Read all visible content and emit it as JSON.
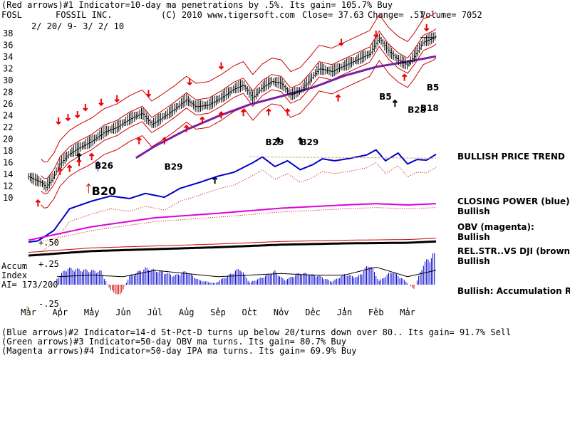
{
  "header": {
    "line1": "(Red arrows)#1 Indicator=10-day ma penetrations by .5%. Its gain= 105.7% Buy",
    "ticker": "FOSL",
    "company": "FOSSIL INC.",
    "copyright": "(C) 2010 www.tigersoft.com",
    "close": "Close=  37.63",
    "change": "Change= .57",
    "volume": "Volume= 7052",
    "date_range": "2/ 20/ 9- 3/ 2/ 10"
  },
  "footer": {
    "line1": "(Blue arrows)#2 Indicator=14-d St-Pct-D turns up below 20/turns down over 80.. Its gain= 91.7% Sell",
    "line2": "(Green arrows)#3 Indicator=50-day OBV ma turns. Its gain= 80.7% Buy",
    "line3": "(Magenta arrows)#4 Indicator=50-day IPA ma turns. Its gain= 69.9% Buy"
  },
  "side_labels": {
    "trend": "BULLISH PRICE TREND",
    "closing_power_title": "CLOSING POWER (blue):",
    "closing_power_state": "Bullish",
    "obv_title": "OBV (magenta):",
    "obv_state": "Bullish",
    "relstr_title": "REL.STR..VS DJI (brown):",
    "relstr_state": "Bullish",
    "accum_state": "Bullish: Accumulation Rising"
  },
  "accum_label": {
    "line1": "Accum",
    "line2": "Index",
    "line3": "AI= 173/200",
    "plus50": "+.50",
    "plus25": "+.25",
    "minus25": "-.25"
  },
  "colors": {
    "price_bars": "#000000",
    "bands": "#cc0000",
    "ma_purple": "#7a1fa2",
    "closing_power": "#0000cc",
    "obv": "#dd00dd",
    "rel_str": "#000000",
    "accum_pos": "#0000cc",
    "accum_neg": "#cc0000",
    "red_arrow": "#ee0000",
    "tan_dash": "#c8a060"
  },
  "chart_data": {
    "type": "bar",
    "ylim": [
      10,
      38
    ],
    "y_ticks": [
      "38",
      "36",
      "34",
      "32",
      "30",
      "28",
      "26",
      "24",
      "22",
      "20",
      "18",
      "16",
      "14",
      "12",
      "10"
    ],
    "months": [
      "Mar",
      "Apr",
      "May",
      "Jun",
      "Jul",
      "Aug",
      "Sep",
      "Oct",
      "Nov",
      "Dec",
      "Jan",
      "Feb",
      "Mar"
    ],
    "annotations": [
      {
        "text": "B26",
        "month": 2.1,
        "price": 15.0
      },
      {
        "text": "B20",
        "month": 2.0,
        "price": 10.5
      },
      {
        "text": "B29",
        "month": 4.3,
        "price": 14.8
      },
      {
        "text": "B29",
        "month": 7.5,
        "price": 19.0
      },
      {
        "text": "B29",
        "month": 8.6,
        "price": 19.0
      },
      {
        "text": "B5",
        "month": 11.1,
        "price": 26.7
      },
      {
        "text": "B5",
        "month": 12.6,
        "price": 28.3
      },
      {
        "text": "B28",
        "month": 12.0,
        "price": 24.5
      },
      {
        "text": "B18",
        "month": 12.4,
        "price": 24.8
      }
    ],
    "price_close_anchors": [
      [
        0.0,
        13.6
      ],
      [
        0.4,
        12.6
      ],
      [
        0.55,
        11.8
      ],
      [
        0.8,
        13.6
      ],
      [
        1.0,
        15.8
      ],
      [
        1.3,
        17.5
      ],
      [
        1.6,
        18.5
      ],
      [
        2.0,
        19.6
      ],
      [
        2.4,
        21.2
      ],
      [
        2.8,
        22.0
      ],
      [
        3.2,
        23.4
      ],
      [
        3.6,
        24.4
      ],
      [
        3.9,
        22.5
      ],
      [
        4.2,
        23.5
      ],
      [
        4.6,
        25.0
      ],
      [
        5.0,
        26.7
      ],
      [
        5.3,
        25.5
      ],
      [
        5.7,
        25.8
      ],
      [
        6.1,
        27.0
      ],
      [
        6.5,
        28.5
      ],
      [
        6.8,
        29.2
      ],
      [
        7.1,
        27.0
      ],
      [
        7.4,
        28.8
      ],
      [
        7.7,
        29.8
      ],
      [
        8.0,
        29.5
      ],
      [
        8.3,
        27.5
      ],
      [
        8.6,
        28.2
      ],
      [
        8.9,
        30.0
      ],
      [
        9.2,
        32.0
      ],
      [
        9.6,
        31.5
      ],
      [
        10.0,
        32.5
      ],
      [
        10.4,
        33.5
      ],
      [
        10.8,
        34.5
      ],
      [
        11.1,
        37.2
      ],
      [
        11.4,
        35.0
      ],
      [
        11.7,
        33.5
      ],
      [
        12.0,
        32.6
      ],
      [
        12.2,
        34.0
      ],
      [
        12.5,
        36.5
      ],
      [
        12.8,
        37.2
      ],
      [
        12.9,
        37.6
      ]
    ],
    "ma50_anchors": [
      [
        3.4,
        16.8
      ],
      [
        4.0,
        18.8
      ],
      [
        5.0,
        21.6
      ],
      [
        6.0,
        23.9
      ],
      [
        7.0,
        25.9
      ],
      [
        8.0,
        27.3
      ],
      [
        9.0,
        28.8
      ],
      [
        10.0,
        30.8
      ],
      [
        11.0,
        32.3
      ],
      [
        12.0,
        33.2
      ],
      [
        12.9,
        34.1
      ]
    ],
    "red_arrows_down": [
      {
        "month": 0.95,
        "price": 22.6
      },
      {
        "month": 1.25,
        "price": 23.2
      },
      {
        "month": 1.55,
        "price": 23.7
      },
      {
        "month": 1.8,
        "price": 24.9
      },
      {
        "month": 2.3,
        "price": 25.8
      },
      {
        "month": 2.8,
        "price": 26.4
      },
      {
        "month": 3.8,
        "price": 27.3
      },
      {
        "month": 5.1,
        "price": 29.3
      },
      {
        "month": 6.1,
        "price": 32.0
      },
      {
        "month": 9.9,
        "price": 36.0
      },
      {
        "month": 11.0,
        "price": 37.4
      },
      {
        "month": 12.6,
        "price": 38.5
      }
    ],
    "red_arrows_up": [
      {
        "month": 0.3,
        "price": 9.6
      },
      {
        "month": 1.0,
        "price": 15.0
      },
      {
        "month": 1.3,
        "price": 15.5
      },
      {
        "month": 1.6,
        "price": 16.5
      },
      {
        "month": 2.0,
        "price": 17.5
      },
      {
        "month": 3.5,
        "price": 20.2
      },
      {
        "month": 4.3,
        "price": 20.2
      },
      {
        "month": 5.0,
        "price": 22.3
      },
      {
        "month": 5.5,
        "price": 23.7
      },
      {
        "month": 6.1,
        "price": 24.6
      },
      {
        "month": 6.8,
        "price": 25.0
      },
      {
        "month": 7.6,
        "price": 25.1
      },
      {
        "month": 8.2,
        "price": 25.1
      },
      {
        "month": 9.8,
        "price": 27.5
      },
      {
        "month": 11.9,
        "price": 31.0
      }
    ],
    "black_arrows_up": [
      {
        "month": 1.6,
        "price": 17.5
      },
      {
        "month": 5.9,
        "price": 13.5
      },
      {
        "month": 7.9,
        "price": 20.2
      },
      {
        "month": 8.6,
        "price": 20.2
      },
      {
        "month": 11.6,
        "price": 26.6
      }
    ],
    "closing_power_anchors": [
      [
        0.0,
        -7.8
      ],
      [
        0.3,
        -7.6
      ],
      [
        0.8,
        -6.0
      ],
      [
        1.3,
        -2.6
      ],
      [
        2.0,
        -1.4
      ],
      [
        2.6,
        -0.6
      ],
      [
        3.2,
        -1.0
      ],
      [
        3.7,
        -0.2
      ],
      [
        4.3,
        -0.8
      ],
      [
        4.8,
        0.6
      ],
      [
        5.4,
        1.5
      ],
      [
        6.0,
        2.5
      ],
      [
        6.5,
        3.1
      ],
      [
        7.1,
        4.6
      ],
      [
        7.4,
        5.5
      ],
      [
        7.8,
        4.0
      ],
      [
        8.2,
        4.9
      ],
      [
        8.6,
        3.5
      ],
      [
        9.0,
        4.3
      ],
      [
        9.3,
        5.2
      ],
      [
        9.7,
        4.9
      ],
      [
        10.2,
        5.3
      ],
      [
        10.7,
        5.8
      ],
      [
        11.0,
        6.6
      ],
      [
        11.3,
        4.9
      ],
      [
        11.7,
        6.1
      ],
      [
        12.0,
        4.4
      ],
      [
        12.3,
        5.1
      ],
      [
        12.6,
        5.0
      ],
      [
        12.9,
        5.9
      ]
    ],
    "obv_anchors": [
      [
        0.0,
        -7.5
      ],
      [
        2.0,
        -5.4
      ],
      [
        4.0,
        -4.0
      ],
      [
        6.0,
        -3.3
      ],
      [
        8.0,
        -2.5
      ],
      [
        10.0,
        -2.0
      ],
      [
        11.0,
        -1.8
      ],
      [
        12.0,
        -2.0
      ],
      [
        12.9,
        -1.8
      ]
    ],
    "relstr_anchors": [
      [
        0.0,
        -9.9
      ],
      [
        2.0,
        -9.2
      ],
      [
        4.0,
        -8.9
      ],
      [
        6.0,
        -8.6
      ],
      [
        8.0,
        -8.2
      ],
      [
        10.0,
        -8.0
      ],
      [
        12.0,
        -7.9
      ],
      [
        12.9,
        -7.7
      ]
    ],
    "accum_anchors": [
      [
        0.9,
        0.08
      ],
      [
        1.2,
        0.22
      ],
      [
        1.7,
        0.2
      ],
      [
        2.3,
        0.18
      ],
      [
        2.6,
        -0.08
      ],
      [
        2.9,
        -0.15
      ],
      [
        3.2,
        0.12
      ],
      [
        3.7,
        0.22
      ],
      [
        4.2,
        0.18
      ],
      [
        4.6,
        0.12
      ],
      [
        5.0,
        0.18
      ],
      [
        5.4,
        0.06
      ],
      [
        5.9,
        0.02
      ],
      [
        6.3,
        0.12
      ],
      [
        6.7,
        0.22
      ],
      [
        7.0,
        0.03
      ],
      [
        7.4,
        0.1
      ],
      [
        7.8,
        0.18
      ],
      [
        8.1,
        0.06
      ],
      [
        8.6,
        0.16
      ],
      [
        9.2,
        0.12
      ],
      [
        9.6,
        0.04
      ],
      [
        10.0,
        0.14
      ],
      [
        10.4,
        0.1
      ],
      [
        10.8,
        0.28
      ],
      [
        11.1,
        0.05
      ],
      [
        11.5,
        0.18
      ],
      [
        11.9,
        0.06
      ],
      [
        12.2,
        -0.06
      ],
      [
        12.5,
        0.28
      ],
      [
        12.8,
        0.4
      ]
    ],
    "accum_ma_anchors": [
      [
        0.9,
        0.1
      ],
      [
        2.0,
        0.12
      ],
      [
        3.0,
        0.1
      ],
      [
        4.0,
        0.18
      ],
      [
        5.0,
        0.14
      ],
      [
        6.0,
        0.1
      ],
      [
        7.0,
        0.12
      ],
      [
        8.0,
        0.14
      ],
      [
        9.0,
        0.12
      ],
      [
        10.0,
        0.12
      ],
      [
        11.0,
        0.22
      ],
      [
        12.0,
        0.1
      ],
      [
        12.9,
        0.18
      ]
    ]
  }
}
